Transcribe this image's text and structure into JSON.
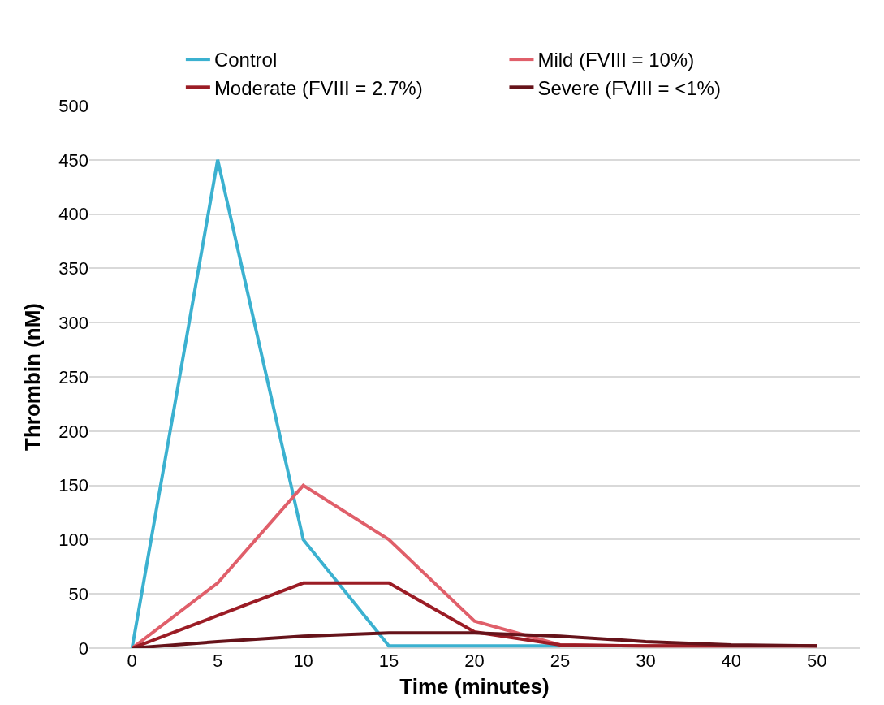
{
  "chart_data": {
    "type": "line",
    "xlabel": "Time (minutes)",
    "ylabel": "Thrombin (nM)",
    "categories": [
      "0",
      "5",
      "10",
      "15",
      "20",
      "25",
      "30",
      "40",
      "50"
    ],
    "series": [
      {
        "name": "Control",
        "color": "#3bb1d0",
        "values": [
          0,
          450,
          100,
          2,
          2,
          2,
          null,
          null,
          null
        ]
      },
      {
        "name": "Mild (FVIII = 10%)",
        "color": "#e05f6a",
        "values": [
          0,
          60,
          150,
          100,
          25,
          3,
          2,
          2,
          2
        ]
      },
      {
        "name": "Moderate (FVIII = 2.7%)",
        "color": "#9b1c25",
        "values": [
          0,
          30,
          60,
          60,
          15,
          3,
          2,
          2,
          2
        ]
      },
      {
        "name": "Severe (FVIII = <1%)",
        "color": "#66131a",
        "values": [
          0,
          6,
          11,
          14,
          14,
          11,
          6,
          3,
          2
        ]
      }
    ],
    "ylim": [
      0,
      500
    ],
    "yticks": [
      0,
      50,
      100,
      150,
      200,
      250,
      300,
      350,
      400,
      450,
      500
    ],
    "grid": "y",
    "legend": "top",
    "marker": "none",
    "line_style": "solid"
  }
}
